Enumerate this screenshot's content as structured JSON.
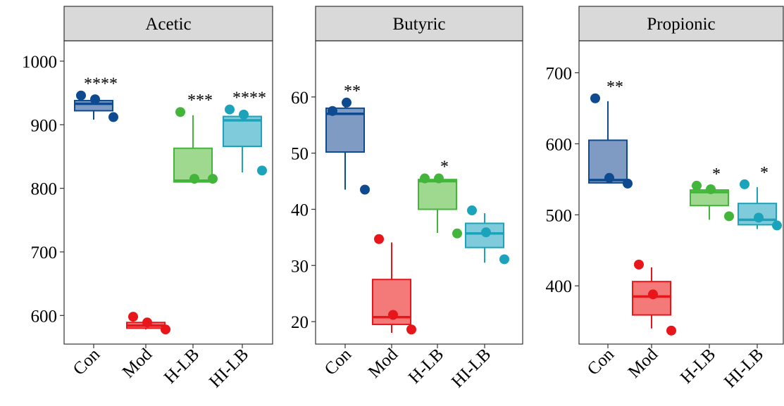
{
  "groups": [
    "Con",
    "Mod",
    "H-LB",
    "HI-LB"
  ],
  "colors": {
    "Con": {
      "fill": "#7f9bc4",
      "stroke": "#0d4a8f"
    },
    "Mod": {
      "fill": "#f47a7a",
      "stroke": "#e8151b"
    },
    "H-LB": {
      "fill": "#9fd98f",
      "stroke": "#43b53a"
    },
    "HI-LB": {
      "fill": "#7fcbdb",
      "stroke": "#1aa3ba"
    }
  },
  "chart_data": [
    {
      "type": "box",
      "title": "Acetic",
      "xlabel": "",
      "ylabel": "",
      "ylim": [
        555,
        1032
      ],
      "yticks": [
        600,
        700,
        800,
        900,
        1000
      ],
      "categories": [
        "Con",
        "Mod",
        "H-LB",
        "HI-LB"
      ],
      "boxes": [
        {
          "group": "Con",
          "min": 908,
          "q1": 922,
          "median": 933,
          "q3": 938,
          "max": 938,
          "points": [
            946,
            940,
            912
          ],
          "signif": "****"
        },
        {
          "group": "Mod",
          "min": 578,
          "q1": 580,
          "median": 584,
          "q3": 589,
          "max": 596,
          "points": [
            598,
            589,
            578
          ],
          "signif": ""
        },
        {
          "group": "H-LB",
          "min": 810,
          "q1": 810,
          "median": 812,
          "q3": 863,
          "max": 915,
          "points": [
            920,
            815,
            815
          ],
          "signif": "***"
        },
        {
          "group": "HI-LB",
          "min": 825,
          "q1": 866,
          "median": 907,
          "q3": 913,
          "max": 918,
          "points": [
            924,
            916,
            828
          ],
          "signif": "****"
        }
      ]
    },
    {
      "type": "box",
      "title": "Butyric",
      "xlabel": "",
      "ylabel": "",
      "ylim": [
        16,
        70
      ],
      "yticks": [
        20,
        30,
        40,
        50,
        60
      ],
      "categories": [
        "Con",
        "Mod",
        "H-LB",
        "HI-LB"
      ],
      "boxes": [
        {
          "group": "Con",
          "min": 43.5,
          "q1": 50.2,
          "median": 57,
          "q3": 58,
          "max": 58.5,
          "points": [
            57.5,
            59,
            43.5
          ],
          "signif": "**"
        },
        {
          "group": "Mod",
          "min": 18,
          "q1": 19.5,
          "median": 20.8,
          "q3": 27.5,
          "max": 34.1,
          "points": [
            34.7,
            21.2,
            18.6
          ],
          "signif": ""
        },
        {
          "group": "H-LB",
          "min": 35.8,
          "q1": 40,
          "median": 45,
          "q3": 45.3,
          "max": 45.5,
          "points": [
            45.5,
            45.5,
            35.7
          ],
          "signif": "*"
        },
        {
          "group": "HI-LB",
          "min": 30.5,
          "q1": 33.2,
          "median": 35.7,
          "q3": 37.5,
          "max": 39.3,
          "points": [
            39.8,
            35.9,
            31.1
          ],
          "signif": ""
        }
      ]
    },
    {
      "type": "box",
      "title": "Propionic",
      "xlabel": "",
      "ylabel": "",
      "ylim": [
        318,
        745
      ],
      "yticks": [
        400,
        500,
        600,
        700
      ],
      "categories": [
        "Con",
        "Mod",
        "H-LB",
        "HI-LB"
      ],
      "boxes": [
        {
          "group": "Con",
          "min": 545,
          "q1": 545,
          "median": 549,
          "q3": 605,
          "max": 660,
          "points": [
            664,
            552,
            544
          ],
          "signif": "**"
        },
        {
          "group": "Mod",
          "min": 340,
          "q1": 359,
          "median": 385,
          "q3": 406,
          "max": 426,
          "points": [
            430,
            388,
            337
          ],
          "signif": ""
        },
        {
          "group": "H-LB",
          "min": 493,
          "q1": 513,
          "median": 532,
          "q3": 535,
          "max": 538,
          "points": [
            541,
            536,
            498
          ],
          "signif": "*"
        },
        {
          "group": "HI-LB",
          "min": 480,
          "q1": 486,
          "median": 493,
          "q3": 516,
          "max": 539,
          "points": [
            543,
            496,
            485
          ],
          "signif": "*"
        }
      ]
    }
  ]
}
